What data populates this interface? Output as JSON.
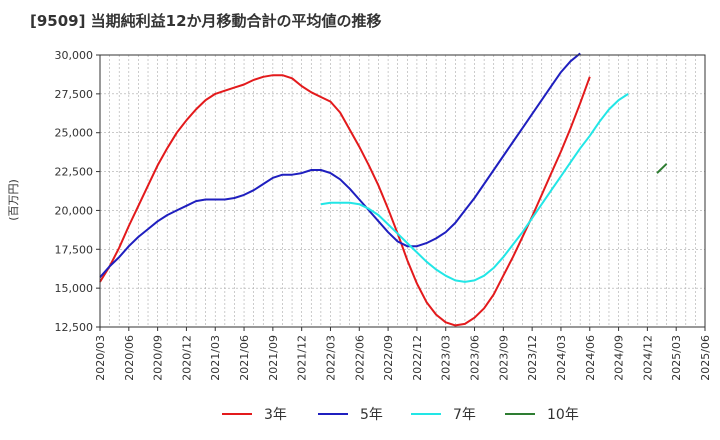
{
  "chart_data": {
    "type": "line",
    "title": "[9509]  当期純利益12か月移動合計の平均値の推移",
    "ylabel": "(百万円)",
    "xlabel": "",
    "ylim": [
      12500,
      30000
    ],
    "yticks": [
      "30,000",
      "27,500",
      "25,000",
      "22,500",
      "20,000",
      "17,500",
      "15,000",
      "12,500"
    ],
    "ytick_values": [
      30000,
      27500,
      25000,
      22500,
      20000,
      17500,
      15000,
      12500
    ],
    "xticks": [
      "2020/03",
      "2020/06",
      "2020/09",
      "2020/12",
      "2021/03",
      "2021/06",
      "2021/09",
      "2021/12",
      "2022/03",
      "2022/06",
      "2022/09",
      "2022/12",
      "2023/03",
      "2023/06",
      "2023/09",
      "2023/12",
      "2024/03",
      "2024/06",
      "2024/09",
      "2024/12",
      "2025/03",
      "2025/06"
    ],
    "grid": true,
    "legend_position": "bottom",
    "series": [
      {
        "name": "3年",
        "color": "#e31a1c",
        "start_month": "2020/03",
        "values": [
          15400,
          16400,
          17600,
          19000,
          20300,
          21600,
          22900,
          24000,
          25000,
          25800,
          26500,
          27100,
          27500,
          27700,
          27900,
          28100,
          28400,
          28600,
          28700,
          28700,
          28500,
          28000,
          27600,
          27300,
          27000,
          26300,
          25200,
          24100,
          22900,
          21600,
          20100,
          18500,
          16800,
          15300,
          14100,
          13300,
          12800,
          12600,
          12700,
          13100,
          13700,
          14600,
          15800,
          17000,
          18300,
          19600,
          21000,
          22400,
          23800,
          25300,
          26900,
          28600
        ]
      },
      {
        "name": "5年",
        "color": "#1f1fbf",
        "start_month": "2020/03",
        "values": [
          15700,
          16400,
          17000,
          17700,
          18300,
          18800,
          19300,
          19700,
          20000,
          20300,
          20600,
          20700,
          20700,
          20700,
          20800,
          21000,
          21300,
          21700,
          22100,
          22300,
          22300,
          22400,
          22600,
          22600,
          22400,
          22000,
          21400,
          20700,
          20000,
          19300,
          18600,
          18000,
          17700,
          17700,
          17900,
          18200,
          18600,
          19200,
          20000,
          20800,
          21700,
          22600,
          23500,
          24400,
          25300,
          26200,
          27100,
          28000,
          28900,
          29600,
          30100
        ]
      },
      {
        "name": "7年",
        "color": "#22e6e6",
        "start_month": "2022/02",
        "values": [
          20400,
          20500,
          20500,
          20500,
          20400,
          20100,
          19700,
          19100,
          18500,
          17900,
          17300,
          16700,
          16200,
          15800,
          15500,
          15400,
          15500,
          15800,
          16300,
          17000,
          17800,
          18600,
          19500,
          20400,
          21300,
          22200,
          23100,
          24000,
          24800,
          25700,
          26500,
          27100,
          27500
        ]
      },
      {
        "name": "10年",
        "color": "#2e7d32",
        "start_month": "2025/01",
        "values": [
          22400,
          23000
        ]
      }
    ]
  }
}
